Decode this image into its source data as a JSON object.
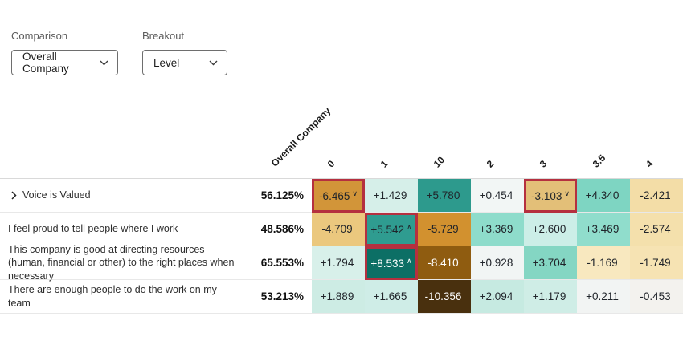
{
  "controls": {
    "comparison": {
      "label": "Comparison",
      "value": "Overall Company"
    },
    "breakout": {
      "label": "Breakout",
      "value": "Level"
    }
  },
  "heatmap": {
    "comparison_column_header": "Overall Company",
    "column_headers": [
      "0",
      "1",
      "10",
      "2",
      "3",
      "3.5",
      "4"
    ],
    "highlight_color": "#b5303f",
    "default_text_color": "#20242a",
    "rows": [
      {
        "label": "Voice is Valued",
        "expandable": true,
        "percent": "56.125%",
        "cells": [
          {
            "value": "-6.465",
            "marker": "significant-decrease",
            "marker_glyph": "∨",
            "bg": "#d29539",
            "highlighted": true
          },
          {
            "value": "+1.429",
            "bg": "#d6efe9"
          },
          {
            "value": "+5.780",
            "bg": "#2d9a8d"
          },
          {
            "value": "+0.454",
            "bg": "#f2f6f5"
          },
          {
            "value": "-3.103",
            "marker": "significant-decrease",
            "marker_glyph": "∨",
            "bg": "#e3bf78",
            "highlighted": true
          },
          {
            "value": "+4.340",
            "bg": "#7ed5c2"
          },
          {
            "value": "-2.421",
            "bg": "#f3dda7"
          }
        ]
      },
      {
        "label": "I feel proud to tell people where I work",
        "expandable": false,
        "percent": "48.586%",
        "cells": [
          {
            "value": "-4.709",
            "bg": "#ebc87e"
          },
          {
            "value": "+5.542",
            "marker": "significant-increase",
            "marker_glyph": "∧",
            "bg": "#2f9c90",
            "highlighted": true
          },
          {
            "value": "-5.729",
            "bg": "#d2912f"
          },
          {
            "value": "+3.369",
            "bg": "#8edccb"
          },
          {
            "value": "+2.600",
            "bg": "#cceee7"
          },
          {
            "value": "+3.469",
            "bg": "#90ddcc"
          },
          {
            "value": "-2.574",
            "bg": "#f4e0ac"
          }
        ]
      },
      {
        "label": "This company is good at directing resources (human, financial or other) to the right places when necessary",
        "expandable": false,
        "percent": "65.553%",
        "cells": [
          {
            "value": "+1.794",
            "bg": "#d8f0ea"
          },
          {
            "value": "+8.533",
            "marker": "significant-increase",
            "marker_glyph": "∧",
            "bg": "#0c6f65",
            "fg": "#ffffff",
            "highlighted": true
          },
          {
            "value": "-8.410",
            "bg": "#8f5c10",
            "fg": "#ffffff"
          },
          {
            "value": "+0.928",
            "bg": "#f1f5f4"
          },
          {
            "value": "+3.704",
            "bg": "#84d6c3"
          },
          {
            "value": "-1.169",
            "bg": "#f8e8bf"
          },
          {
            "value": "-1.749",
            "bg": "#f6e3b3"
          }
        ]
      },
      {
        "label": "There are enough people to do the work on my team",
        "expandable": false,
        "percent": "53.213%",
        "cells": [
          {
            "value": "+1.889",
            "bg": "#cdece4"
          },
          {
            "value": "+1.665",
            "bg": "#cfede7"
          },
          {
            "value": "-10.356",
            "bg": "#49300e",
            "fg": "#ffffff"
          },
          {
            "value": "+2.094",
            "bg": "#c6eae1"
          },
          {
            "value": "+1.179",
            "bg": "#cfede6"
          },
          {
            "value": "+0.211",
            "bg": "#f2f4f3"
          },
          {
            "value": "-0.453",
            "bg": "#f3f2ee"
          }
        ]
      }
    ]
  },
  "chart_data": {
    "type": "heatmap",
    "title": "",
    "row_labels": [
      "Voice is Valued",
      "I feel proud to tell people where I work",
      "This company is good at directing resources (human, financial or other) to the right places when necessary",
      "There are enough people to do the work on my team"
    ],
    "row_base_percents": [
      56.125,
      48.586,
      65.553,
      53.213
    ],
    "column_labels": [
      "0",
      "1",
      "10",
      "2",
      "3",
      "3.5",
      "4"
    ],
    "comparison_column": "Overall Company",
    "values": [
      [
        -6.465,
        1.429,
        5.78,
        0.454,
        -3.103,
        4.34,
        -2.421
      ],
      [
        -4.709,
        5.542,
        -5.729,
        3.369,
        2.6,
        3.469,
        -2.574
      ],
      [
        1.794,
        8.533,
        -8.41,
        0.928,
        3.704,
        -1.169,
        -1.749
      ],
      [
        1.889,
        1.665,
        -10.356,
        2.094,
        1.179,
        0.211,
        -0.453
      ]
    ],
    "significant_cells": [
      {
        "row": 0,
        "col": 0,
        "direction": "down"
      },
      {
        "row": 0,
        "col": 4,
        "direction": "down"
      },
      {
        "row": 1,
        "col": 1,
        "direction": "up"
      },
      {
        "row": 2,
        "col": 1,
        "direction": "up"
      }
    ],
    "legend_position": "none",
    "color_scale": {
      "negative": "#49300e",
      "neutral": "#f4f6f5",
      "positive": "#0c6f65"
    }
  }
}
